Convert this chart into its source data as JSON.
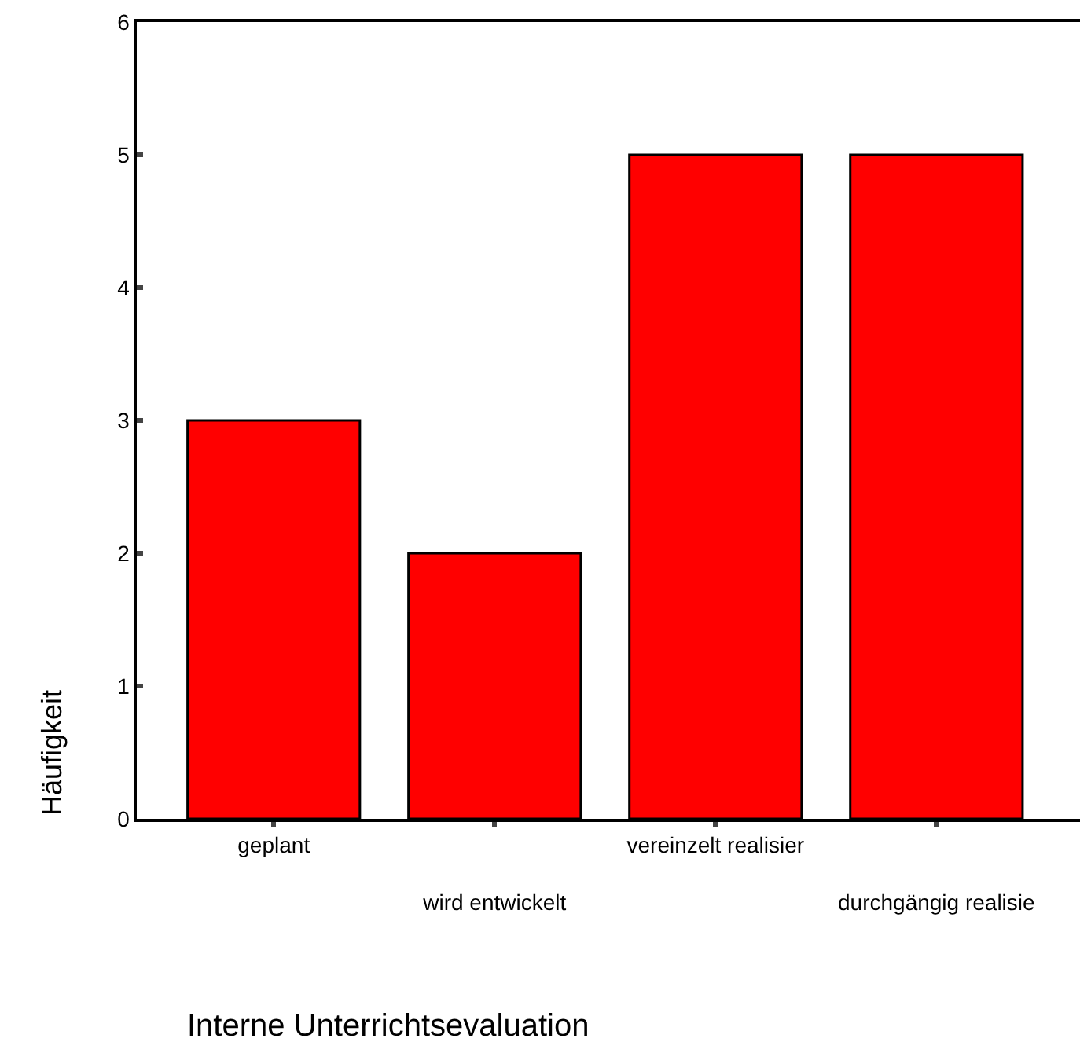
{
  "chart_data": {
    "type": "bar",
    "xlabel": "Interne Unterrichtsevaluation",
    "ylabel": "Häufigkeit",
    "categories": [
      "geplant",
      "wird entwickelt",
      "vereinzelt realisier",
      "durchgängig realisie"
    ],
    "values": [
      3,
      2,
      5,
      5
    ],
    "color": "#ff0000",
    "ylim": [
      0,
      6
    ],
    "yticks": [
      0,
      1,
      2,
      3,
      4,
      5,
      6
    ],
    "legend": false
  }
}
